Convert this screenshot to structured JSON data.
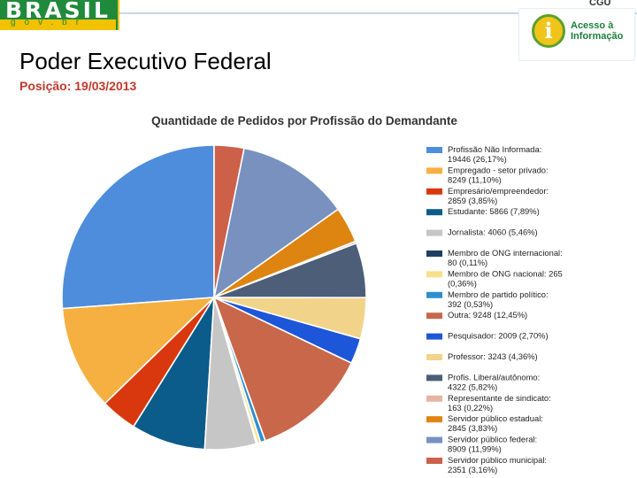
{
  "header": {
    "brand_word": "BRASIL",
    "brand_sub": "gov.br",
    "corner_text": "CGU",
    "access_logo_text": "Acesso à Informação",
    "access_logo_icon": "info-icon"
  },
  "page": {
    "title": "Poder Executivo Federal",
    "date": "Posição: 19/03/2013"
  },
  "colors": {
    "title_date": "#c0392b",
    "brand_green": "#1f8a3b",
    "brand_yellow": "#f2c200"
  },
  "chart_data": {
    "type": "pie",
    "title": "Quantidade de Pedidos por Profissão do Demandante",
    "legend_position": "right",
    "slices": [
      {
        "label": "Profissão Não Informada:",
        "value": 19446,
        "detail": "19446 (26,17%)",
        "color": "#4e8ddb"
      },
      {
        "label": "Empregado - setor privado:",
        "value": 8249,
        "detail": "8249 (11,10%)",
        "color": "#f5b041"
      },
      {
        "label": "Empresário/empreendedor:",
        "value": 2859,
        "detail": "2859 (3,85%)",
        "color": "#d9380f"
      },
      {
        "label": "Estudante: 5866 (7,89%)",
        "value": 5866,
        "detail": "",
        "color": "#0b5c8a"
      },
      {
        "label": "Jornalista: 4060 (5,46%)",
        "value": 4060,
        "detail": "",
        "color": "#c6c6c6"
      },
      {
        "label": "Membro de ONG internacional:",
        "value": 80,
        "detail": "80 (0,11%)",
        "color": "#1f3e63"
      },
      {
        "label": "Membro de ONG nacional: 265",
        "value": 265,
        "detail": "(0,36%)",
        "color": "#f7e08c"
      },
      {
        "label": "Membro de partido político:",
        "value": 392,
        "detail": "392 (0,53%)",
        "color": "#2e8fce"
      },
      {
        "label": "Outra: 9248 (12,45%)",
        "value": 9248,
        "detail": "",
        "color": "#c9674b"
      },
      {
        "label": "Pesquisador: 2009 (2,70%)",
        "value": 2009,
        "detail": "",
        "color": "#1d56d8"
      },
      {
        "label": "Professor: 3243 (4,36%)",
        "value": 3243,
        "detail": "",
        "color": "#f2d38a"
      },
      {
        "label": "Profis. Liberal/autônomo:",
        "value": 4322,
        "detail": "4322 (5,82%)",
        "color": "#4c5e78"
      },
      {
        "label": "Representante de sindicato:",
        "value": 163,
        "detail": "163 (0,22%)",
        "color": "#e8b4a2"
      },
      {
        "label": "Servidor público estadual:",
        "value": 2845,
        "detail": "2845 (3,83%)",
        "color": "#de8410"
      },
      {
        "label": "Servidor público federal:",
        "value": 8909,
        "detail": "8909 (11,99%)",
        "color": "#7891bf"
      },
      {
        "label": "Servidor público municipal:",
        "value": 2351,
        "detail": "2351 (3,16%)",
        "color": "#cc6048"
      }
    ]
  }
}
